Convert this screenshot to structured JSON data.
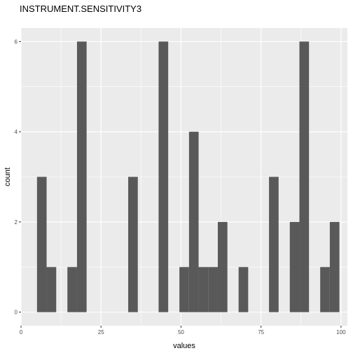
{
  "chart_data": {
    "type": "bar",
    "title": "INSTRUMENT.SENSITIVITY3",
    "xlabel": "values",
    "ylabel": "count",
    "xlim": [
      0,
      102
    ],
    "ylim": [
      -0.3,
      6.3
    ],
    "x_ticks": [
      0,
      25,
      50,
      75,
      100
    ],
    "x_tick_labels": [
      "0",
      "25",
      "50",
      "75",
      "100"
    ],
    "y_ticks": [
      0,
      2,
      4,
      6
    ],
    "y_tick_labels": [
      "0",
      "2",
      "4",
      "6"
    ],
    "grid": true,
    "background": "#ebebeb",
    "bar_color": "#595959",
    "bins": [
      {
        "x0": 5.0,
        "x1": 8.0,
        "count": 3
      },
      {
        "x0": 8.0,
        "x1": 11.0,
        "count": 1
      },
      {
        "x0": 14.5,
        "x1": 17.5,
        "count": 1
      },
      {
        "x0": 17.5,
        "x1": 20.5,
        "count": 6
      },
      {
        "x0": 33.5,
        "x1": 36.5,
        "count": 3
      },
      {
        "x0": 43.0,
        "x1": 46.0,
        "count": 6
      },
      {
        "x0": 49.5,
        "x1": 52.5,
        "count": 1
      },
      {
        "x0": 52.5,
        "x1": 55.5,
        "count": 4
      },
      {
        "x0": 55.5,
        "x1": 58.5,
        "count": 1
      },
      {
        "x0": 58.5,
        "x1": 61.5,
        "count": 1
      },
      {
        "x0": 61.5,
        "x1": 64.5,
        "count": 2
      },
      {
        "x0": 68.0,
        "x1": 71.0,
        "count": 1
      },
      {
        "x0": 77.5,
        "x1": 80.5,
        "count": 3
      },
      {
        "x0": 84.0,
        "x1": 87.0,
        "count": 2
      },
      {
        "x0": 87.0,
        "x1": 90.0,
        "count": 6
      },
      {
        "x0": 93.5,
        "x1": 96.5,
        "count": 1
      },
      {
        "x0": 96.5,
        "x1": 99.5,
        "count": 2
      }
    ]
  }
}
